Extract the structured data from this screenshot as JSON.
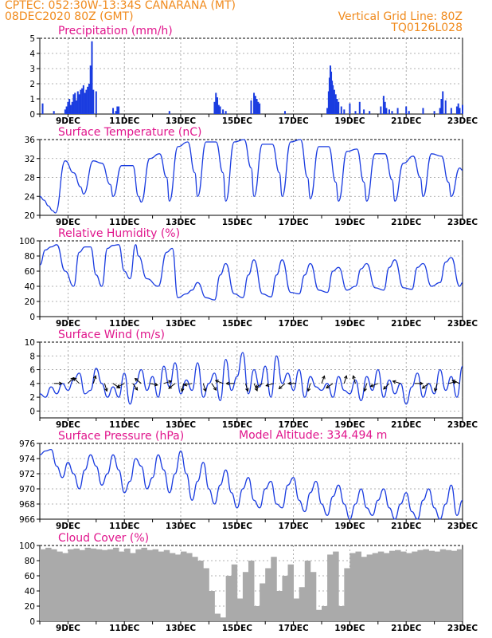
{
  "header": {
    "line1": "CPTEC:   052:30W-13:34S   CANARANA (MT)",
    "line2": "08DEC2020 80Z (GMT)",
    "right1": "Vertical Grid Line: 80Z",
    "right2": "TQ0126L028",
    "altitude": "Model Altitude: 334.494 m"
  },
  "colors": {
    "header": "#f08a1c",
    "title": "#e0158c",
    "series": "#1a3ce0",
    "cloud": "#aaaaaa"
  },
  "x_axis": {
    "start_day": 8,
    "days": 15,
    "tick_labels": [
      "9DEC",
      "11DEC",
      "13DEC",
      "15DEC",
      "17DEC",
      "19DEC",
      "21DEC",
      "23DEC"
    ],
    "tick_days": [
      9,
      11,
      13,
      15,
      17,
      19,
      21,
      23
    ]
  },
  "chart_data": [
    {
      "type": "bar",
      "title": "Precipitation (mm/h)",
      "ylim": [
        0,
        5
      ],
      "yticks": [
        0,
        1,
        2,
        3,
        4,
        5
      ],
      "x": [
        8.1,
        8.5,
        8.9,
        8.95,
        9.0,
        9.05,
        9.1,
        9.15,
        9.2,
        9.25,
        9.3,
        9.35,
        9.4,
        9.45,
        9.5,
        9.55,
        9.6,
        9.65,
        9.7,
        9.75,
        9.8,
        9.85,
        9.9,
        10.0,
        10.6,
        10.7,
        10.75,
        10.8,
        12.6,
        14.2,
        14.25,
        14.3,
        14.35,
        14.4,
        14.5,
        14.6,
        15.5,
        15.6,
        15.65,
        15.7,
        15.75,
        15.8,
        16.7,
        18.2,
        18.25,
        18.28,
        18.31,
        18.34,
        18.37,
        18.4,
        18.45,
        18.5,
        18.55,
        18.6,
        18.7,
        18.8,
        19.0,
        19.2,
        19.35,
        19.5,
        19.7,
        20.1,
        20.2,
        20.25,
        20.3,
        20.4,
        20.5,
        20.7,
        21.0,
        21.1,
        21.6,
        22.0,
        22.2,
        22.25,
        22.3,
        22.4,
        22.6,
        22.8,
        22.85,
        22.9,
        23.0
      ],
      "values": [
        0.7,
        0.2,
        0.3,
        0.5,
        0.8,
        1.0,
        0.6,
        0.8,
        1.3,
        1.4,
        0.9,
        1.5,
        1.3,
        1.6,
        1.7,
        1.9,
        1.4,
        1.6,
        1.8,
        2.0,
        3.2,
        4.8,
        1.6,
        1.5,
        0.4,
        0.2,
        0.5,
        0.5,
        0.2,
        0.8,
        1.4,
        1.1,
        0.6,
        0.5,
        0.3,
        0.2,
        0.9,
        1.4,
        1.2,
        1.0,
        0.8,
        0.7,
        0.2,
        0.4,
        1.5,
        2.4,
        3.2,
        2.8,
        2.2,
        1.9,
        1.6,
        1.3,
        1.0,
        0.8,
        0.5,
        0.3,
        0.7,
        0.2,
        0.8,
        0.3,
        0.2,
        0.5,
        1.2,
        0.8,
        0.4,
        0.3,
        0.2,
        0.4,
        0.5,
        0.2,
        0.4,
        0.2,
        0.4,
        1.0,
        1.5,
        0.9,
        0.4,
        0.5,
        0.7,
        0.4,
        0.6
      ]
    },
    {
      "type": "line",
      "title": "Surface Temperature (nC)",
      "ylim": [
        20,
        36
      ],
      "yticks": [
        20,
        24,
        28,
        32,
        36
      ],
      "x": [
        8.0,
        8.15,
        8.3,
        8.45,
        8.55,
        8.9,
        9.2,
        9.45,
        9.55,
        9.9,
        10.2,
        10.5,
        10.6,
        10.9,
        11.3,
        11.5,
        11.6,
        11.9,
        12.25,
        12.5,
        12.6,
        12.9,
        13.25,
        13.5,
        13.6,
        13.9,
        14.25,
        14.5,
        14.6,
        14.9,
        15.25,
        15.5,
        15.6,
        15.9,
        16.25,
        16.5,
        16.6,
        16.9,
        17.25,
        17.5,
        17.6,
        17.9,
        18.25,
        18.5,
        18.6,
        18.9,
        19.25,
        19.5,
        19.6,
        19.9,
        20.25,
        20.5,
        20.6,
        20.9,
        21.25,
        21.5,
        21.6,
        21.9,
        22.25,
        22.5,
        22.6,
        22.9,
        23.0
      ],
      "values": [
        24.0,
        23.2,
        22.0,
        21.0,
        20.5,
        31.5,
        29.0,
        26.0,
        24.5,
        31.5,
        31.0,
        26.5,
        24.0,
        30.5,
        30.5,
        24.0,
        22.8,
        32.0,
        33.0,
        28.0,
        23.0,
        34.5,
        35.5,
        29.0,
        24.0,
        35.5,
        35.5,
        29.0,
        23.0,
        35.5,
        36.0,
        30.0,
        24.0,
        35.0,
        35.0,
        29.0,
        24.0,
        35.5,
        36.0,
        28.0,
        23.5,
        34.5,
        34.5,
        27.0,
        23.0,
        33.5,
        34.0,
        27.0,
        23.0,
        33.0,
        33.0,
        27.5,
        23.0,
        31.0,
        32.5,
        28.0,
        24.0,
        33.0,
        32.5,
        27.0,
        24.0,
        30.0,
        29.5
      ]
    },
    {
      "type": "line",
      "title": "Relative Humidity (%)",
      "ylim": [
        0,
        100
      ],
      "yticks": [
        0,
        20,
        40,
        60,
        80,
        100
      ],
      "x": [
        8.0,
        8.2,
        8.4,
        8.6,
        8.9,
        9.2,
        9.4,
        9.6,
        9.8,
        10.0,
        10.2,
        10.4,
        10.6,
        10.8,
        11.0,
        11.2,
        11.4,
        11.5,
        11.8,
        12.2,
        12.5,
        12.7,
        12.9,
        13.2,
        13.4,
        13.6,
        13.9,
        14.2,
        14.4,
        14.6,
        14.9,
        15.2,
        15.4,
        15.6,
        15.9,
        16.2,
        16.4,
        16.6,
        16.9,
        17.2,
        17.4,
        17.6,
        17.9,
        18.2,
        18.4,
        18.6,
        18.9,
        19.2,
        19.4,
        19.6,
        19.9,
        20.2,
        20.4,
        20.6,
        20.9,
        21.2,
        21.4,
        21.6,
        21.9,
        22.2,
        22.4,
        22.6,
        22.9,
        23.0
      ],
      "values": [
        68,
        88,
        92,
        95,
        60,
        40,
        85,
        92,
        92,
        55,
        40,
        90,
        94,
        95,
        60,
        50,
        95,
        80,
        50,
        40,
        85,
        90,
        25,
        30,
        35,
        45,
        25,
        22,
        55,
        70,
        30,
        25,
        55,
        75,
        30,
        26,
        55,
        75,
        32,
        30,
        55,
        70,
        35,
        32,
        60,
        65,
        35,
        40,
        63,
        70,
        38,
        35,
        65,
        75,
        38,
        36,
        65,
        70,
        40,
        45,
        72,
        78,
        40,
        45
      ]
    },
    {
      "type": "line",
      "title": "Surface Wind (m/s)",
      "ylim": [
        -1,
        10
      ],
      "yticks": [
        0,
        2,
        4,
        6,
        8,
        10
      ],
      "x": [
        8.0,
        8.2,
        8.4,
        8.6,
        8.8,
        9.0,
        9.2,
        9.4,
        9.6,
        9.8,
        10.0,
        10.2,
        10.4,
        10.6,
        10.8,
        11.0,
        11.2,
        11.4,
        11.6,
        11.8,
        12.0,
        12.2,
        12.4,
        12.6,
        12.8,
        13.0,
        13.2,
        13.4,
        13.6,
        13.8,
        14.0,
        14.2,
        14.4,
        14.6,
        14.8,
        15.0,
        15.2,
        15.4,
        15.6,
        15.8,
        16.0,
        16.2,
        16.4,
        16.6,
        16.8,
        17.0,
        17.2,
        17.4,
        17.6,
        17.8,
        18.0,
        18.2,
        18.4,
        18.6,
        18.8,
        19.0,
        19.2,
        19.4,
        19.6,
        19.8,
        20.0,
        20.2,
        20.4,
        20.6,
        20.8,
        21.0,
        21.2,
        21.4,
        21.6,
        21.8,
        22.0,
        22.2,
        22.4,
        22.6,
        22.8,
        23.0
      ],
      "values": [
        2.5,
        2.0,
        3.5,
        2.5,
        4.0,
        3.0,
        4.5,
        5.5,
        2.5,
        3.0,
        6.2,
        4.0,
        2.0,
        3.5,
        2.0,
        5.5,
        1.0,
        4.0,
        6.0,
        3.0,
        5.0,
        2.0,
        6.5,
        3.5,
        7.0,
        2.5,
        4.5,
        3.0,
        7.0,
        2.0,
        4.0,
        5.5,
        1.5,
        7.5,
        3.0,
        5.0,
        8.5,
        2.5,
        6.0,
        3.5,
        6.5,
        2.0,
        8.0,
        4.0,
        5.5,
        3.0,
        6.0,
        2.0,
        5.0,
        3.5,
        3.0,
        4.0,
        2.0,
        5.0,
        3.0,
        2.5,
        4.5,
        1.5,
        5.0,
        3.0,
        6.0,
        2.0,
        4.5,
        2.5,
        4.0,
        1.0,
        3.5,
        5.5,
        2.0,
        4.0,
        2.5,
        6.0,
        3.0,
        5.0,
        2.0,
        6.5
      ],
      "arrows": [
        {
          "day": 8.5,
          "dx": 1,
          "dy": 0
        },
        {
          "day": 9.0,
          "dx": 1,
          "dy": 1
        },
        {
          "day": 9.4,
          "dx": -1,
          "dy": 1
        },
        {
          "day": 9.9,
          "dx": 0.3,
          "dy": 1
        },
        {
          "day": 10.3,
          "dx": 0.3,
          "dy": -1
        },
        {
          "day": 10.6,
          "dx": 1,
          "dy": -0.7
        },
        {
          "day": 11.0,
          "dx": -1,
          "dy": -0.5
        },
        {
          "day": 11.3,
          "dx": 0.7,
          "dy": -1
        },
        {
          "day": 11.6,
          "dx": -1,
          "dy": 0.8
        },
        {
          "day": 11.9,
          "dx": 1,
          "dy": -0.2
        },
        {
          "day": 12.4,
          "dx": 1,
          "dy": 0.3
        },
        {
          "day": 12.8,
          "dx": -1,
          "dy": -0.8
        },
        {
          "day": 13.1,
          "dx": -0.2,
          "dy": -1
        },
        {
          "day": 13.4,
          "dx": -1,
          "dy": -0.2
        },
        {
          "day": 13.8,
          "dx": 0.3,
          "dy": -1
        },
        {
          "day": 14.1,
          "dx": 0.6,
          "dy": -0.9
        },
        {
          "day": 14.5,
          "dx": -1,
          "dy": 0.4
        },
        {
          "day": 14.9,
          "dx": -1,
          "dy": 0
        },
        {
          "day": 15.3,
          "dx": 0.3,
          "dy": -1
        },
        {
          "day": 15.6,
          "dx": 0.4,
          "dy": -0.9
        },
        {
          "day": 15.9,
          "dx": -1,
          "dy": -0.6
        },
        {
          "day": 16.3,
          "dx": -1,
          "dy": -0.3
        },
        {
          "day": 16.7,
          "dx": -0.9,
          "dy": -0.8
        },
        {
          "day": 17.1,
          "dx": -1,
          "dy": 0
        },
        {
          "day": 17.6,
          "dx": -0.3,
          "dy": -1
        },
        {
          "day": 18.0,
          "dx": 0.3,
          "dy": 0.8
        },
        {
          "day": 18.4,
          "dx": -1,
          "dy": -0.7
        },
        {
          "day": 18.8,
          "dx": 0.3,
          "dy": 1
        },
        {
          "day": 19.2,
          "dx": -0.3,
          "dy": 1
        },
        {
          "day": 19.6,
          "dx": -0.3,
          "dy": -1
        },
        {
          "day": 20.0,
          "dx": -1,
          "dy": -0.4
        },
        {
          "day": 20.4,
          "dx": -0.7,
          "dy": -0.7
        },
        {
          "day": 20.8,
          "dx": -1,
          "dy": 0.3
        },
        {
          "day": 21.3,
          "dx": 1,
          "dy": 0
        },
        {
          "day": 21.8,
          "dx": -0.8,
          "dy": -0.6
        },
        {
          "day": 22.1,
          "dx": -0.3,
          "dy": -1
        },
        {
          "day": 22.5,
          "dx": 0.9,
          "dy": 0.2
        },
        {
          "day": 22.9,
          "dx": -1,
          "dy": 0.4
        }
      ]
    },
    {
      "type": "line",
      "title": "Surface Pressure (hPa)",
      "ylim": [
        966,
        976
      ],
      "yticks": [
        966,
        968,
        970,
        972,
        974,
        976
      ],
      "x": [
        8.0,
        8.2,
        8.4,
        8.6,
        8.8,
        9.0,
        9.2,
        9.4,
        9.6,
        9.8,
        10.0,
        10.2,
        10.4,
        10.6,
        10.8,
        11.0,
        11.2,
        11.4,
        11.6,
        11.8,
        12.0,
        12.2,
        12.4,
        12.6,
        12.8,
        13.0,
        13.2,
        13.4,
        13.6,
        13.8,
        14.0,
        14.2,
        14.4,
        14.6,
        14.8,
        15.0,
        15.2,
        15.4,
        15.6,
        15.8,
        16.0,
        16.2,
        16.4,
        16.6,
        16.8,
        17.0,
        17.2,
        17.4,
        17.6,
        17.8,
        18.0,
        18.2,
        18.4,
        18.6,
        18.8,
        19.0,
        19.2,
        19.4,
        19.6,
        19.8,
        20.0,
        20.2,
        20.4,
        20.6,
        20.8,
        21.0,
        21.2,
        21.4,
        21.6,
        21.8,
        22.0,
        22.2,
        22.4,
        22.6,
        22.8,
        23.0
      ],
      "values": [
        974.5,
        975.0,
        975.2,
        973.0,
        971.5,
        973.5,
        972.0,
        970.0,
        972.5,
        974.5,
        973.0,
        970.5,
        972.0,
        974.5,
        972.5,
        969.5,
        971.0,
        974.0,
        973.0,
        970.0,
        971.5,
        974.5,
        972.5,
        969.5,
        972.0,
        975.0,
        972.0,
        968.5,
        971.0,
        973.5,
        970.0,
        968.0,
        970.5,
        972.5,
        969.5,
        967.5,
        970.0,
        971.5,
        968.5,
        967.5,
        970.0,
        971.0,
        968.0,
        967.5,
        970.5,
        971.5,
        968.5,
        967.0,
        969.5,
        971.0,
        968.0,
        966.5,
        969.0,
        970.5,
        968.0,
        966.0,
        968.0,
        970.0,
        967.5,
        966.5,
        968.5,
        970.0,
        967.5,
        966.0,
        968.0,
        969.5,
        967.0,
        966.0,
        968.5,
        970.0,
        967.5,
        966.0,
        968.0,
        970.5,
        966.5,
        968.5
      ]
    },
    {
      "type": "bar",
      "title": "Cloud Cover (%)",
      "ylim": [
        0,
        100
      ],
      "yticks": [
        0,
        20,
        40,
        60,
        80,
        100
      ],
      "x": [
        8.0,
        8.2,
        8.4,
        8.6,
        8.8,
        9.0,
        9.2,
        9.4,
        9.6,
        9.8,
        10.0,
        10.2,
        10.4,
        10.6,
        10.8,
        11.0,
        11.2,
        11.4,
        11.6,
        11.8,
        12.0,
        12.2,
        12.4,
        12.6,
        12.8,
        13.0,
        13.2,
        13.4,
        13.6,
        13.8,
        14.0,
        14.2,
        14.4,
        14.6,
        14.8,
        15.0,
        15.2,
        15.4,
        15.6,
        15.8,
        16.0,
        16.2,
        16.4,
        16.6,
        16.8,
        17.0,
        17.2,
        17.4,
        17.6,
        17.8,
        18.0,
        18.2,
        18.4,
        18.6,
        18.8,
        19.0,
        19.2,
        19.4,
        19.6,
        19.8,
        20.0,
        20.2,
        20.4,
        20.6,
        20.8,
        21.0,
        21.2,
        21.4,
        21.6,
        21.8,
        22.0,
        22.2,
        22.4,
        22.6,
        22.8,
        23.0
      ],
      "values": [
        95,
        97,
        95,
        92,
        90,
        95,
        96,
        94,
        97,
        96,
        95,
        94,
        95,
        97,
        92,
        96,
        90,
        95,
        97,
        94,
        95,
        92,
        94,
        90,
        88,
        92,
        90,
        85,
        80,
        70,
        40,
        10,
        5,
        60,
        75,
        30,
        65,
        80,
        20,
        50,
        70,
        85,
        40,
        60,
        75,
        30,
        45,
        80,
        65,
        15,
        20,
        88,
        92,
        20,
        70,
        90,
        92,
        85,
        88,
        90,
        92,
        90,
        93,
        94,
        92,
        90,
        92,
        94,
        95,
        93,
        92,
        95,
        94,
        93,
        95,
        96
      ]
    }
  ]
}
